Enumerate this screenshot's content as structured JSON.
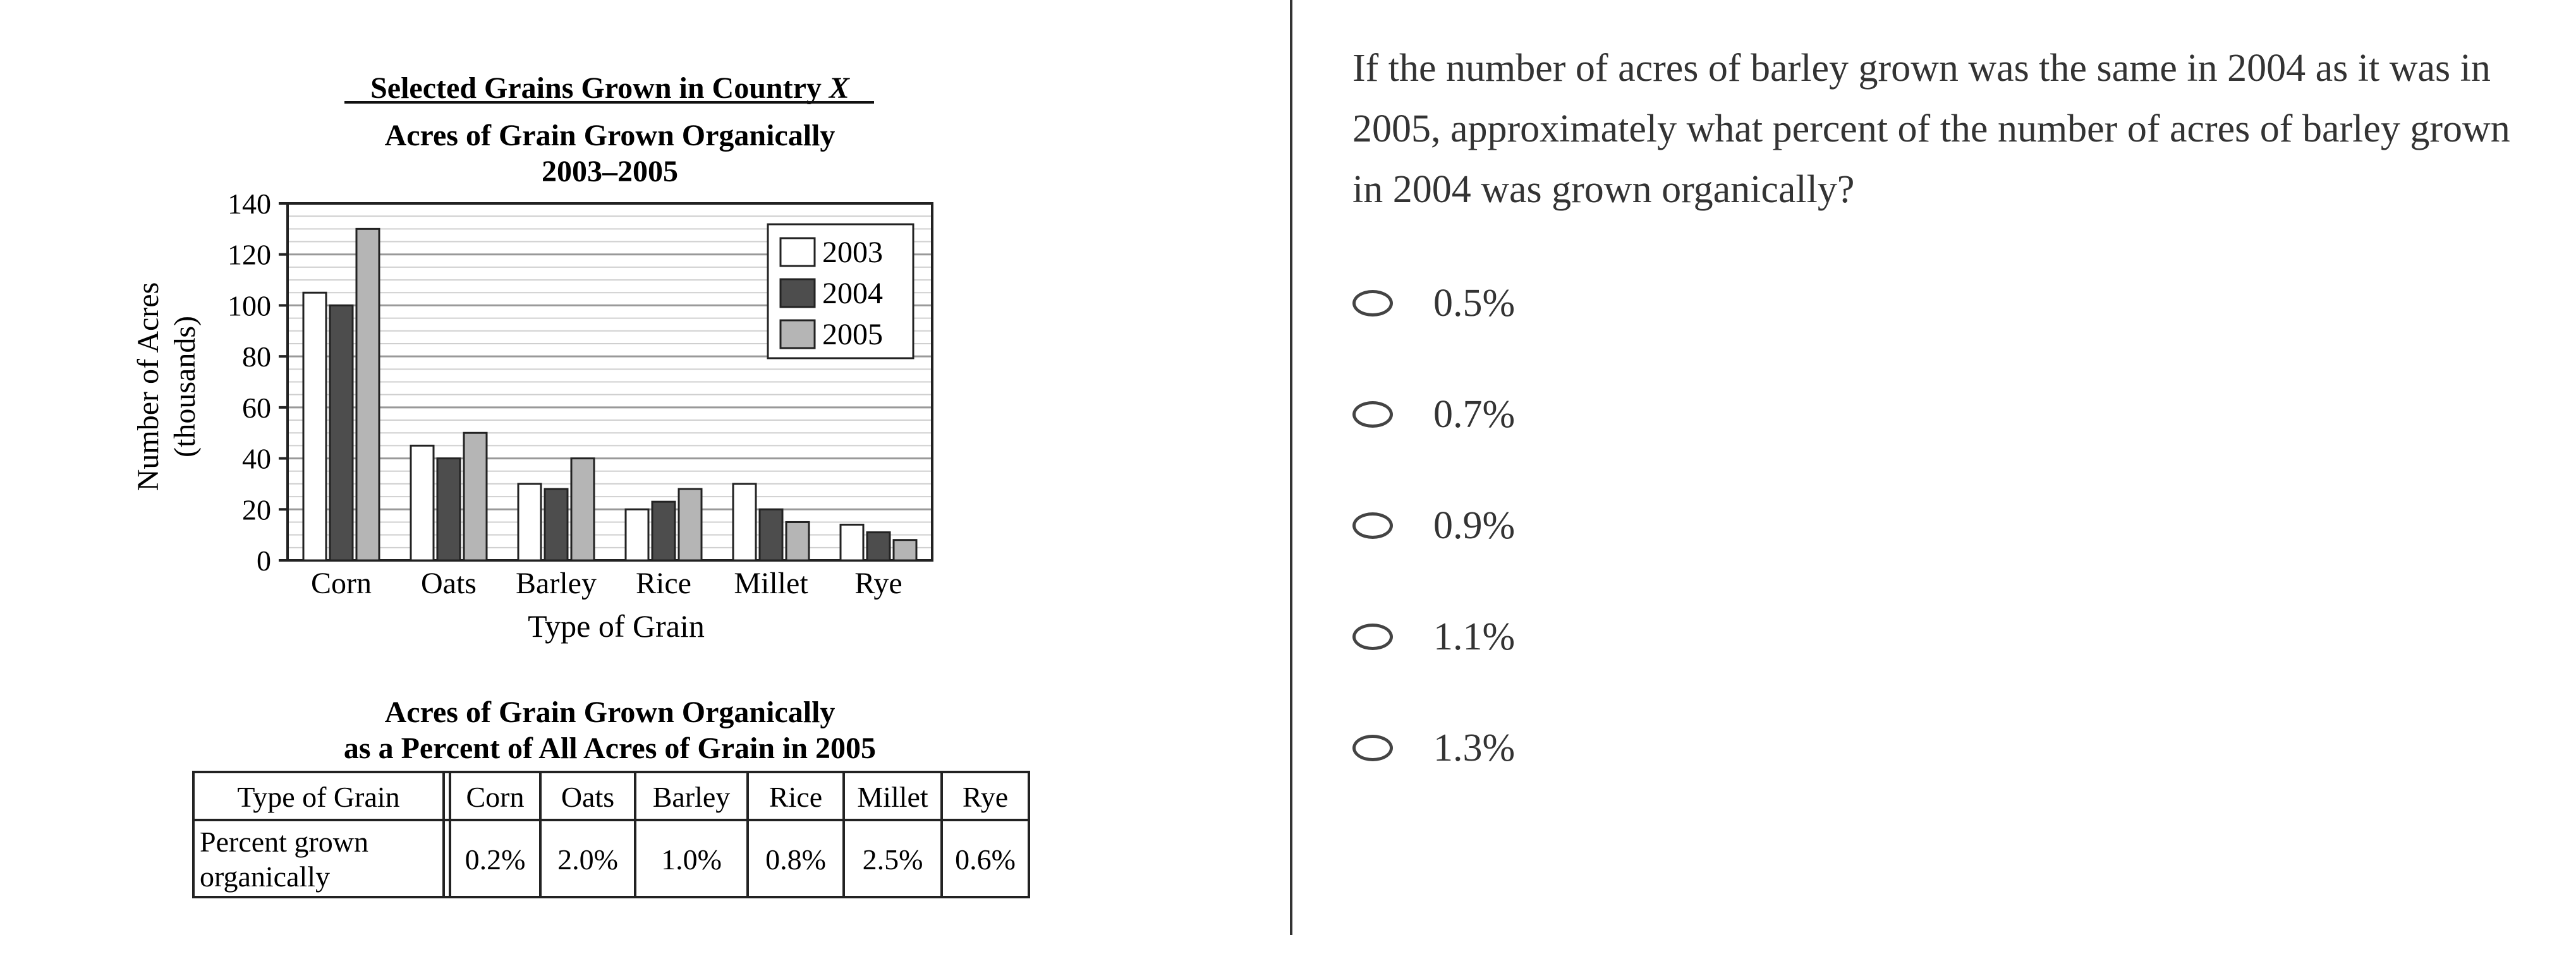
{
  "figure": {
    "super_title": "Selected Grains Grown in Country X",
    "super_title_prefix": "Selected Grains Grown in Country ",
    "super_title_var": "X",
    "table_title_line1": "Acres of Grain Grown Organically",
    "table_title_line2": "as a Percent of All Acres of Grain in 2005",
    "table": {
      "headers": [
        "Type of Grain",
        "Corn",
        "Oats",
        "Barley",
        "Rice",
        "Millet",
        "Rye"
      ],
      "row_label_line1": "Percent grown",
      "row_label_line2": "organically",
      "values": [
        "0.2%",
        "2.0%",
        "1.0%",
        "0.8%",
        "2.5%",
        "0.6%"
      ]
    }
  },
  "chart_data": {
    "type": "bar",
    "title": "Acres of Grain Grown Organically",
    "subtitle": "2003–2005",
    "xlabel": "Type of Grain",
    "ylabel_line1": "Number of Acres",
    "ylabel_line2": "(thousands)",
    "categories": [
      "Corn",
      "Oats",
      "Barley",
      "Rice",
      "Millet",
      "Rye"
    ],
    "ylim": [
      0,
      140
    ],
    "yticks": [
      0,
      20,
      40,
      60,
      80,
      100,
      120,
      140
    ],
    "grid": true,
    "legend_position": "top-right",
    "series": [
      {
        "name": "2003",
        "color": "#ffffff",
        "values": [
          105,
          45,
          30,
          20,
          30,
          14
        ]
      },
      {
        "name": "2004",
        "color": "#4d4d4d",
        "values": [
          100,
          40,
          28,
          23,
          20,
          11
        ]
      },
      {
        "name": "2005",
        "color": "#b5b5b5",
        "values": [
          130,
          50,
          40,
          28,
          15,
          8
        ]
      }
    ]
  },
  "question": {
    "text": "If the number of acres of barley grown was the same in 2004 as it was in 2005, approximately what percent of the number of acres of barley grown in 2004 was grown organically?",
    "options": [
      "0.5%",
      "0.7%",
      "0.9%",
      "1.1%",
      "1.3%"
    ]
  }
}
